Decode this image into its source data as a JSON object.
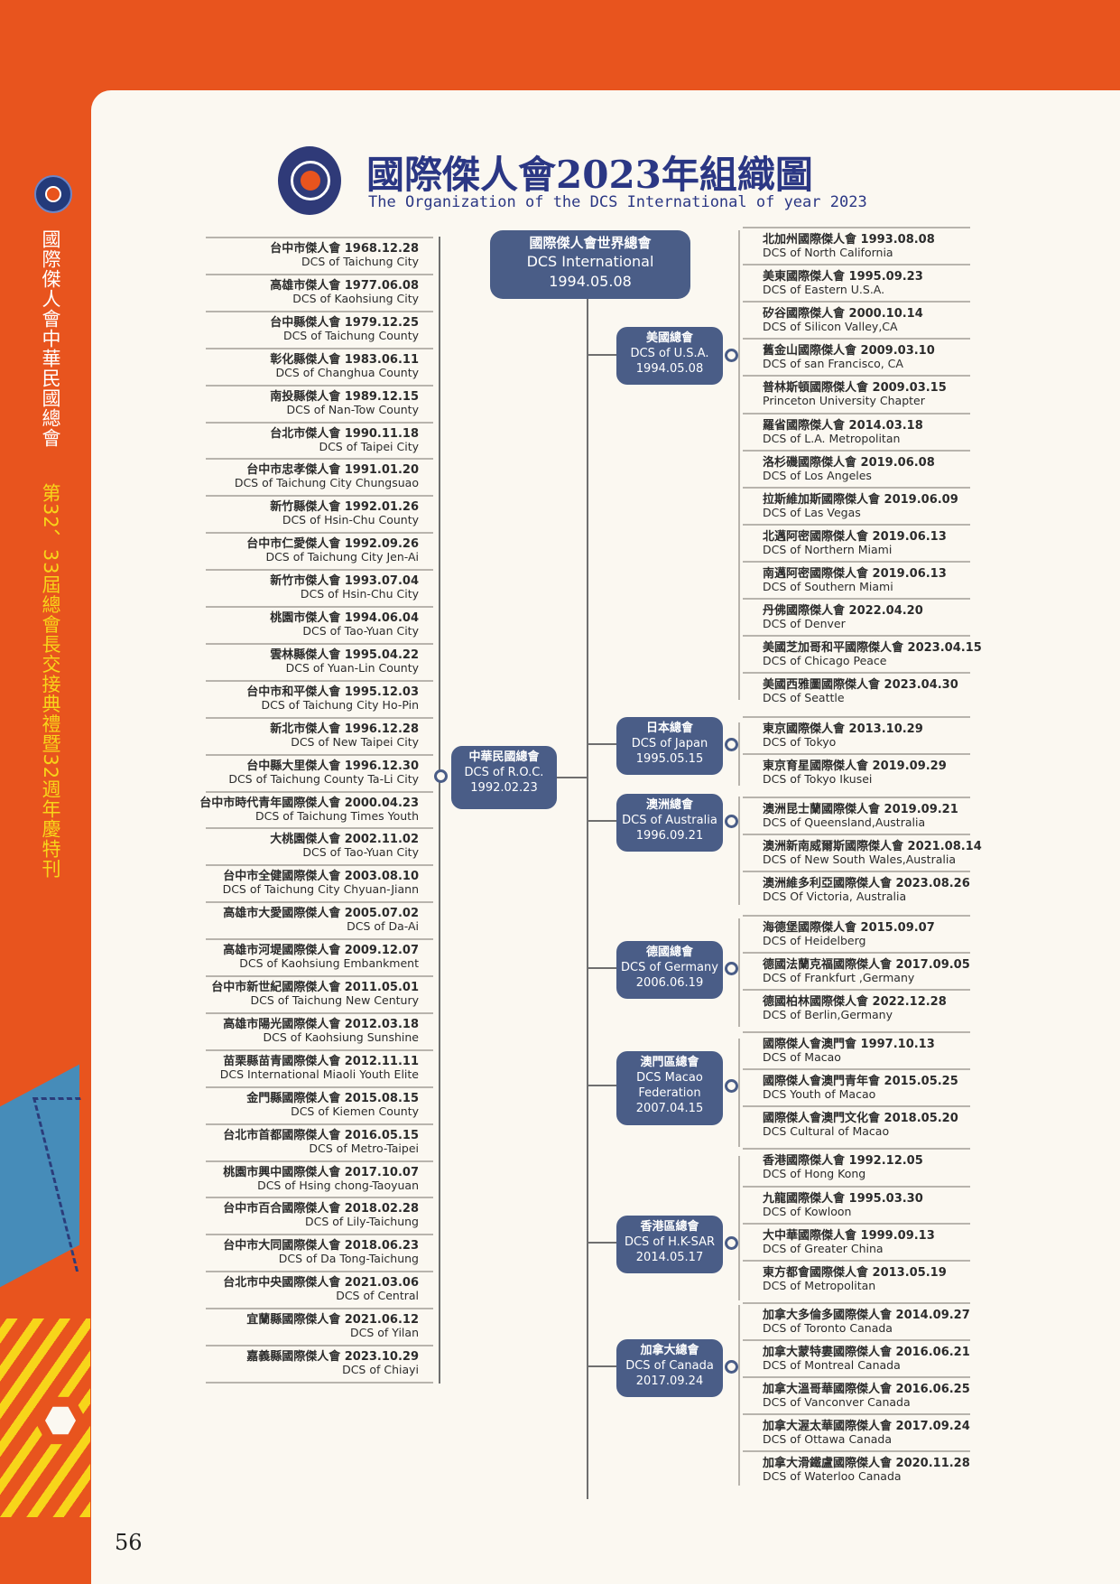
{
  "page": {
    "title": "國際傑人會2023年組織圖",
    "subtitle": "The Organization of the DCS International of year 2023",
    "page_number": "56",
    "side_title": "國際傑人會中華民國總會",
    "side_subtitle": "第32、33屆總會長交接典禮暨32週年慶特刊"
  },
  "root": {
    "zh": "國際傑人會世界總會",
    "en": "DCS International",
    "date": "1994.05.08"
  },
  "roc": {
    "zh": "中華民國總會",
    "en": "DCS of R.O.C.",
    "date": "1992.02.23"
  },
  "roc_chapters": [
    {
      "zh": "台中市傑人會 1968.12.28",
      "en": "DCS of Taichung City"
    },
    {
      "zh": "高雄市傑人會 1977.06.08",
      "en": "DCS of Kaohsiung City"
    },
    {
      "zh": "台中縣傑人會 1979.12.25",
      "en": "DCS of Taichung County"
    },
    {
      "zh": "彰化縣傑人會 1983.06.11",
      "en": "DCS of Changhua County"
    },
    {
      "zh": "南投縣傑人會 1989.12.15",
      "en": "DCS of Nan-Tow County"
    },
    {
      "zh": "台北市傑人會 1990.11.18",
      "en": "DCS of Taipei City"
    },
    {
      "zh": "台中市忠孝傑人會 1991.01.20",
      "en": "DCS of Taichung City Chungsuao"
    },
    {
      "zh": "新竹縣傑人會 1992.01.26",
      "en": "DCS of Hsin-Chu County"
    },
    {
      "zh": "台中市仁愛傑人會 1992.09.26",
      "en": "DCS of Taichung City Jen-Ai"
    },
    {
      "zh": "新竹市傑人會 1993.07.04",
      "en": "DCS of Hsin-Chu City"
    },
    {
      "zh": "桃園市傑人會 1994.06.04",
      "en": "DCS of Tao-Yuan City"
    },
    {
      "zh": "雲林縣傑人會 1995.04.22",
      "en": "DCS of Yuan-Lin County"
    },
    {
      "zh": "台中市和平傑人會 1995.12.03",
      "en": "DCS of Taichung City Ho-Pin"
    },
    {
      "zh": "新北市傑人會 1996.12.28",
      "en": "DCS of New Taipei City"
    },
    {
      "zh": "台中縣大里傑人會 1996.12.30",
      "en": "DCS of Taichung County Ta-Li City"
    },
    {
      "zh": "台中市時代青年國際傑人會 2000.04.23",
      "en": "DCS of Taichung Times Youth"
    },
    {
      "zh": "大桃園傑人會 2002.11.02",
      "en": "DCS of Tao-Yuan City"
    },
    {
      "zh": "台中市全健國際傑人會 2003.08.10",
      "en": "DCS of Taichung City Chyuan-Jiann"
    },
    {
      "zh": "高雄市大愛國際傑人會 2005.07.02",
      "en": "DCS of Da-Ai"
    },
    {
      "zh": "高雄市河堤國際傑人會 2009.12.07",
      "en": "DCS of Kaohsiung Embankment"
    },
    {
      "zh": "台中市新世紀國際傑人會 2011.05.01",
      "en": "DCS of Taichung New Century"
    },
    {
      "zh": "高雄市陽光國際傑人會 2012.03.18",
      "en": "DCS of Kaohsiung Sunshine"
    },
    {
      "zh": "苗栗縣苗青國際傑人會 2012.11.11",
      "en": "DCS International Miaoli Youth Elite"
    },
    {
      "zh": "金門縣國際傑人會 2015.08.15",
      "en": "DCS of Kiemen County"
    },
    {
      "zh": "台北市首都國際傑人會 2016.05.15",
      "en": "DCS of Metro-Taipei"
    },
    {
      "zh": "桃園市興中國際傑人會 2017.10.07",
      "en": "DCS of Hsing chong-Taoyuan"
    },
    {
      "zh": "台中市百合國際傑人會 2018.02.28",
      "en": "DCS of Lily-Taichung"
    },
    {
      "zh": "台中市大同國際傑人會 2018.06.23",
      "en": "DCS of Da Tong-Taichung"
    },
    {
      "zh": "台北市中央國際傑人會 2021.03.06",
      "en": "DCS of Central"
    },
    {
      "zh": "宜蘭縣國際傑人會 2021.06.12",
      "en": "DCS of Yilan"
    },
    {
      "zh": "嘉義縣國際傑人會 2023.10.29",
      "en": "DCS of Chiayi"
    }
  ],
  "groups": [
    {
      "zh": "美國總會",
      "en": "DCS of U.S.A.",
      "date": "1994.05.08"
    },
    {
      "zh": "日本總會",
      "en": "DCS of Japan",
      "date": "1995.05.15"
    },
    {
      "zh": "澳洲總會",
      "en": "DCS of Australia",
      "date": "1996.09.21"
    },
    {
      "zh": "德國總會",
      "en": "DCS of Germany",
      "date": "2006.06.19"
    },
    {
      "zh": "澳門區總會",
      "en": "DCS Macao",
      "en2": "Federation",
      "date": "2007.04.15"
    },
    {
      "zh": "香港區總會",
      "en": "DCS of H.K-SAR",
      "date": "2014.05.17"
    },
    {
      "zh": "加拿大總會",
      "en": "DCS of Canada",
      "date": "2017.09.24"
    }
  ],
  "intl_chapters": [
    {
      "zh": "北加州國際傑人會 1993.08.08",
      "en": "DCS of North California"
    },
    {
      "zh": "美東國際傑人會 1995.09.23",
      "en": "DCS of Eastern U.S.A."
    },
    {
      "zh": "矽谷國際傑人會 2000.10.14",
      "en": "DCS of Silicon Valley,CA"
    },
    {
      "zh": "舊金山國際傑人會 2009.03.10",
      "en": "DCS of san Francisco, CA"
    },
    {
      "zh": "普林斯頓國際傑人會 2009.03.15",
      "en": "Princeton University Chapter"
    },
    {
      "zh": "羅省國際傑人會 2014.03.18",
      "en": "DCS of L.A. Metropolitan"
    },
    {
      "zh": "洛杉磯國際傑人會 2019.06.08",
      "en": "DCS of Los Angeles"
    },
    {
      "zh": "拉斯維加斯國際傑人會 2019.06.09",
      "en": "DCS of Las Vegas"
    },
    {
      "zh": "北邁阿密國際傑人會 2019.06.13",
      "en": "DCS of Northern Miami"
    },
    {
      "zh": "南邁阿密國際傑人會 2019.06.13",
      "en": "DCS of Southern Miami"
    },
    {
      "zh": "丹佛國際傑人會 2022.04.20",
      "en": "DCS of Denver"
    },
    {
      "zh": "美國芝加哥和平國際傑人會 2023.04.15",
      "en": "DCS of Chicago Peace"
    },
    {
      "zh": "美國西雅圖國際傑人會 2023.04.30",
      "en": "DCS of Seattle"
    },
    {
      "zh": "東京國際傑人會 2013.10.29",
      "en": "DCS of Tokyo"
    },
    {
      "zh": "東京育星國際傑人會 2019.09.29",
      "en": "DCS of Tokyo Ikusei"
    },
    {
      "zh": "澳洲昆士蘭國際傑人會 2019.09.21",
      "en": "DCS of Queensland,Australia"
    },
    {
      "zh": "澳洲新南威爾斯國際傑人會 2021.08.14",
      "en": "DCS of New South Wales,Australia"
    },
    {
      "zh": "澳洲維多利亞國際傑人會 2023.08.26",
      "en": "DCS Of Victoria, Australia"
    },
    {
      "zh": "海德堡國際傑人會 2015.09.07",
      "en": "DCS of Heidelberg"
    },
    {
      "zh": "德國法蘭克福國際傑人會 2017.09.05",
      "en": "DCS of Frankfurt ,Germany"
    },
    {
      "zh": "德國柏林國際傑人會 2022.12.28",
      "en": "DCS of Berlin,Germany"
    },
    {
      "zh": "國際傑人會澳門會 1997.10.13",
      "en": "DCS of Macao"
    },
    {
      "zh": "國際傑人會澳門青年會 2015.05.25",
      "en": "DCS Youth of Macao"
    },
    {
      "zh": "國際傑人會澳門文化會 2018.05.20",
      "en": "DCS Cultural of Macao"
    },
    {
      "zh": "香港國際傑人會 1992.12.05",
      "en": "DCS of Hong Kong"
    },
    {
      "zh": "九龍國際傑人會 1995.03.30",
      "en": "DCS of Kowloon"
    },
    {
      "zh": "大中華國際傑人會 1999.09.13",
      "en": "DCS of Greater China"
    },
    {
      "zh": "東方都會國際傑人會 2013.05.19",
      "en": "DCS of Metropolitan"
    },
    {
      "zh": "加拿大多倫多國際傑人會 2014.09.27",
      "en": "DCS of Toronto Canada"
    },
    {
      "zh": "加拿大蒙特婁國際傑人會 2016.06.21",
      "en": "DCS of Montreal Canada"
    },
    {
      "zh": "加拿大溫哥華國際傑人會 2016.06.25",
      "en": "DCS of Vanconver Canada"
    },
    {
      "zh": "加拿大渥太華國際傑人會 2017.09.24",
      "en": "DCS of Ottawa Canada"
    },
    {
      "zh": "加拿大滑鐵盧國際傑人會 2020.11.28",
      "en": "DCS of Waterloo Canada"
    }
  ],
  "colors": {
    "orange": "#e8541e",
    "navy_box": "#4a5d87",
    "title_blue": "#2b3784",
    "yellow": "#f7d51a"
  }
}
